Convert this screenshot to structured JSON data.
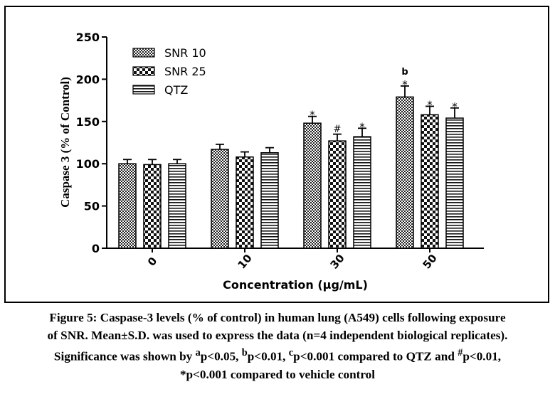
{
  "chart_data": {
    "type": "bar",
    "xlabel": "Concentration (μg/mL)",
    "ylabel": "Caspase 3 (% of Control)",
    "ylim": [
      0,
      250
    ],
    "yticks": [
      0,
      50,
      100,
      150,
      200,
      250
    ],
    "categories": [
      "0",
      "10",
      "30",
      "50"
    ],
    "legend_position": "top-left",
    "series": [
      {
        "name": "SNR 10",
        "pattern": "checker-fine",
        "values": [
          100,
          117,
          148,
          179
        ],
        "errors": [
          5,
          6,
          8,
          13
        ],
        "labels": [
          "",
          "",
          "*",
          "b\n*"
        ]
      },
      {
        "name": "SNR 25",
        "pattern": "checker-coarse",
        "values": [
          99,
          108,
          127,
          158
        ],
        "errors": [
          6,
          6,
          8,
          10
        ],
        "labels": [
          "",
          "",
          "#",
          "*"
        ]
      },
      {
        "name": "QTZ",
        "pattern": "horizontal-stripes",
        "values": [
          100,
          113,
          132,
          154
        ],
        "errors": [
          5,
          6,
          10,
          12
        ],
        "labels": [
          "",
          "",
          "*",
          "*"
        ]
      }
    ]
  },
  "caption": {
    "line1": "Figure 5: Caspase-3 levels (% of control) in human lung (A549) cells following exposure",
    "line2": "of SNR. Mean±S.D. was used to express the data (n=4 independent biological replicates).",
    "line3_parts": [
      "Significance was shown by ",
      "a",
      "p<0.05, ",
      "b",
      "p<0.01, ",
      "c",
      "p<0.001 compared to QTZ and ",
      "#",
      "p<0.01,"
    ],
    "line4": "*p<0.001 compared to vehicle control"
  }
}
